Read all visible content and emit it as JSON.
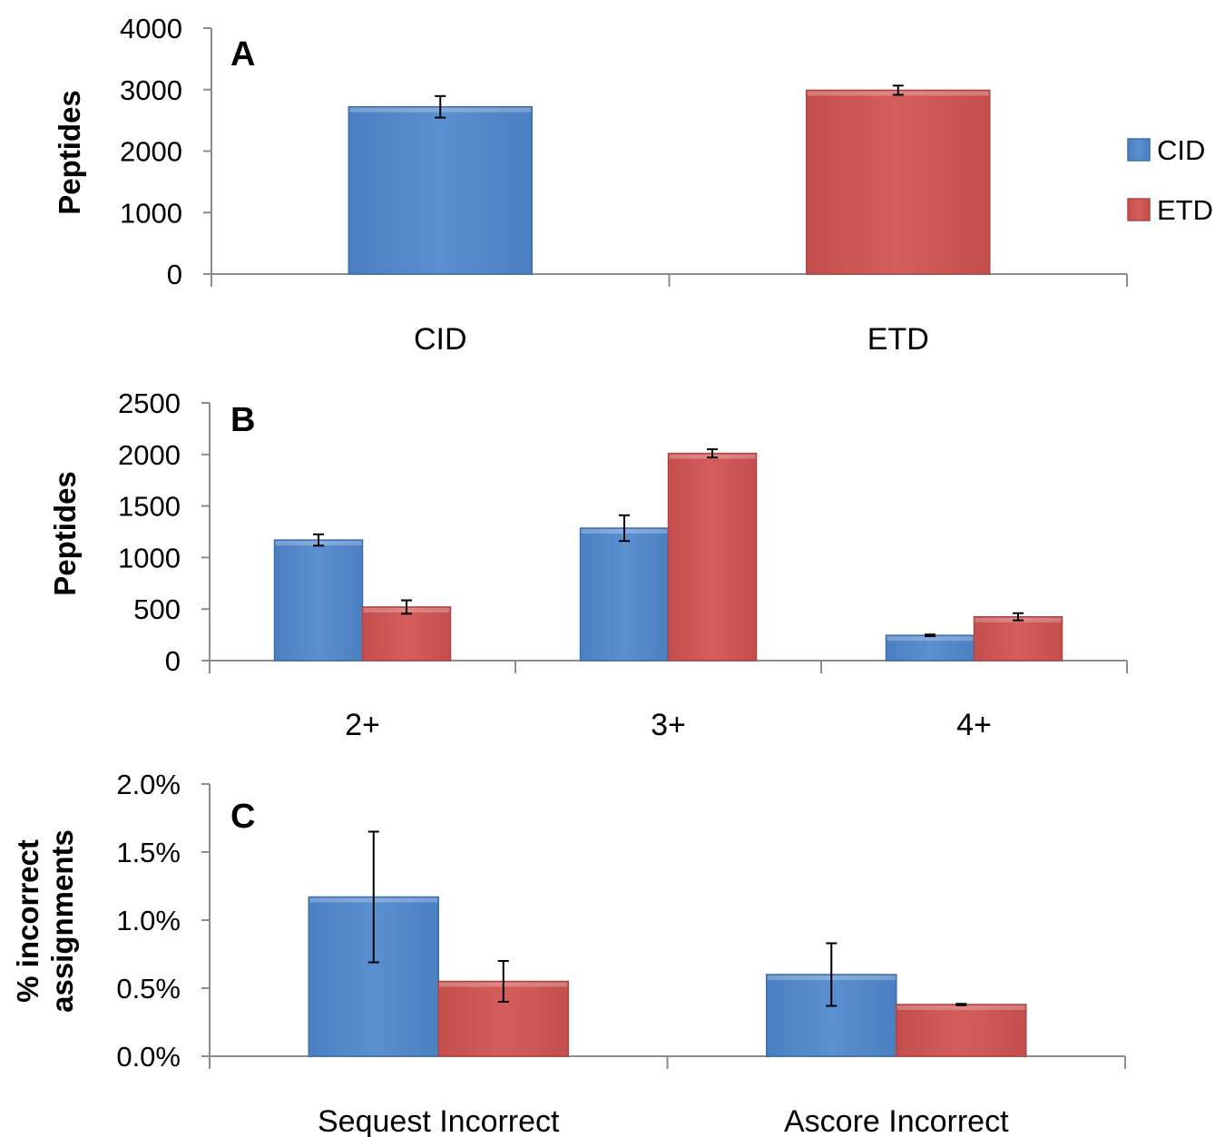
{
  "colors": {
    "CID": "#5a8ecd",
    "ETD": "#d15a58",
    "axis": "#8c8c8c",
    "error": "#000000"
  },
  "legend": [
    {
      "name": "CID",
      "color": "#5a8ecd"
    },
    {
      "name": "ETD",
      "color": "#d15a58"
    }
  ],
  "chart_data": [
    {
      "type": "bar",
      "panel_label": "A",
      "ylabel": "Peptides",
      "categories": [
        "CID",
        "ETD"
      ],
      "yticks": [
        "0",
        "1000",
        "2000",
        "3000",
        "4000"
      ],
      "ylim": [
        0,
        4000
      ],
      "series": [
        {
          "name": "CID",
          "values": [
            2720,
            null
          ],
          "errors": [
            175,
            null
          ]
        },
        {
          "name": "ETD",
          "values": [
            null,
            2990
          ],
          "errors": [
            null,
            75
          ]
        }
      ]
    },
    {
      "type": "bar",
      "panel_label": "B",
      "ylabel": "Peptides",
      "categories": [
        "2+",
        "3+",
        "4+"
      ],
      "yticks": [
        "0",
        "500",
        "1000",
        "1500",
        "2000",
        "2500"
      ],
      "ylim": [
        0,
        2500
      ],
      "series": [
        {
          "name": "CID",
          "values": [
            1170,
            1285,
            245
          ],
          "errors": [
            55,
            125,
            8
          ]
        },
        {
          "name": "ETD",
          "values": [
            520,
            2010,
            425
          ],
          "errors": [
            65,
            40,
            35
          ]
        }
      ]
    },
    {
      "type": "bar",
      "panel_label": "C",
      "ylabel": "% incorrect assignments",
      "ylabel_lines": [
        "% incorrect",
        "assignments"
      ],
      "categories": [
        "Sequest Incorrect",
        "Ascore Incorrect"
      ],
      "yticks": [
        "0.0%",
        "0.5%",
        "1.0%",
        "1.5%",
        "2.0%"
      ],
      "ylim": [
        0,
        2.0
      ],
      "unit": "%",
      "series": [
        {
          "name": "CID",
          "values": [
            1.17,
            0.6
          ],
          "errors": [
            0.48,
            0.23
          ]
        },
        {
          "name": "ETD",
          "values": [
            0.55,
            0.38
          ],
          "errors": [
            0.15,
            0.005
          ]
        }
      ]
    }
  ]
}
